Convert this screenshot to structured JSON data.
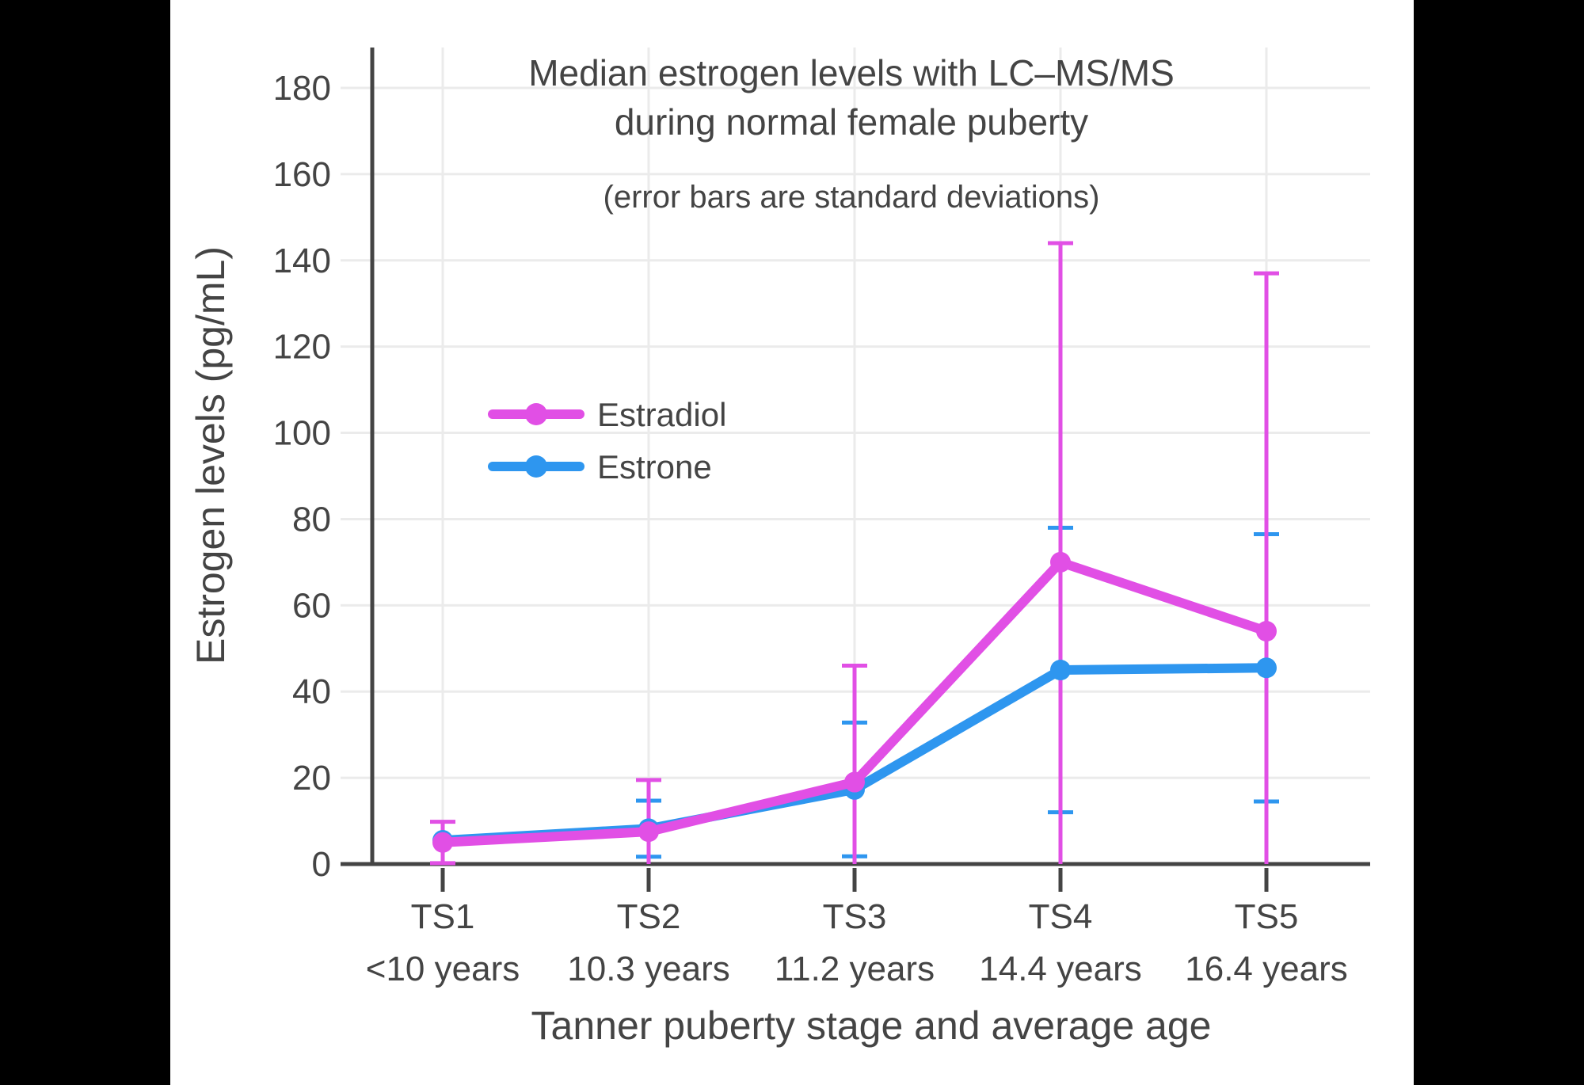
{
  "page": {
    "background": "#000000",
    "panel_background": "#ffffff"
  },
  "chart_data": {
    "type": "line",
    "title": "Median estrogen levels with LC–MS/MS",
    "title_line2": "during normal female puberty",
    "subtitle": "(error bars are standard deviations)",
    "xlabel": "Tanner puberty stage and average age",
    "ylabel": "Estrogen levels (pg/mL)",
    "categories": [
      "TS1",
      "TS2",
      "TS3",
      "TS4",
      "TS5"
    ],
    "category_sublabels": [
      "<10 years",
      "10.3 years",
      "11.2 years",
      "14.4 years",
      "16.4 years"
    ],
    "yticks": [
      0,
      20,
      40,
      60,
      80,
      100,
      120,
      140,
      160,
      180
    ],
    "ylim": [
      0,
      189
    ],
    "grid": true,
    "legend_position": "inside-left",
    "series": [
      {
        "name": "Estradiol",
        "color": "#E14FE5",
        "values": [
          5,
          7.5,
          19,
          70,
          54
        ],
        "sd": [
          4.8,
          12,
          27,
          74,
          83
        ]
      },
      {
        "name": "Estrone",
        "color": "#2E96EF",
        "values": [
          5.5,
          8.2,
          17.3,
          45,
          45.5
        ],
        "sd": [
          null,
          6.5,
          15.5,
          33,
          31
        ]
      }
    ],
    "axis_color": "#444444",
    "grid_color": "#EBEBEB",
    "text_color": "#444444"
  }
}
